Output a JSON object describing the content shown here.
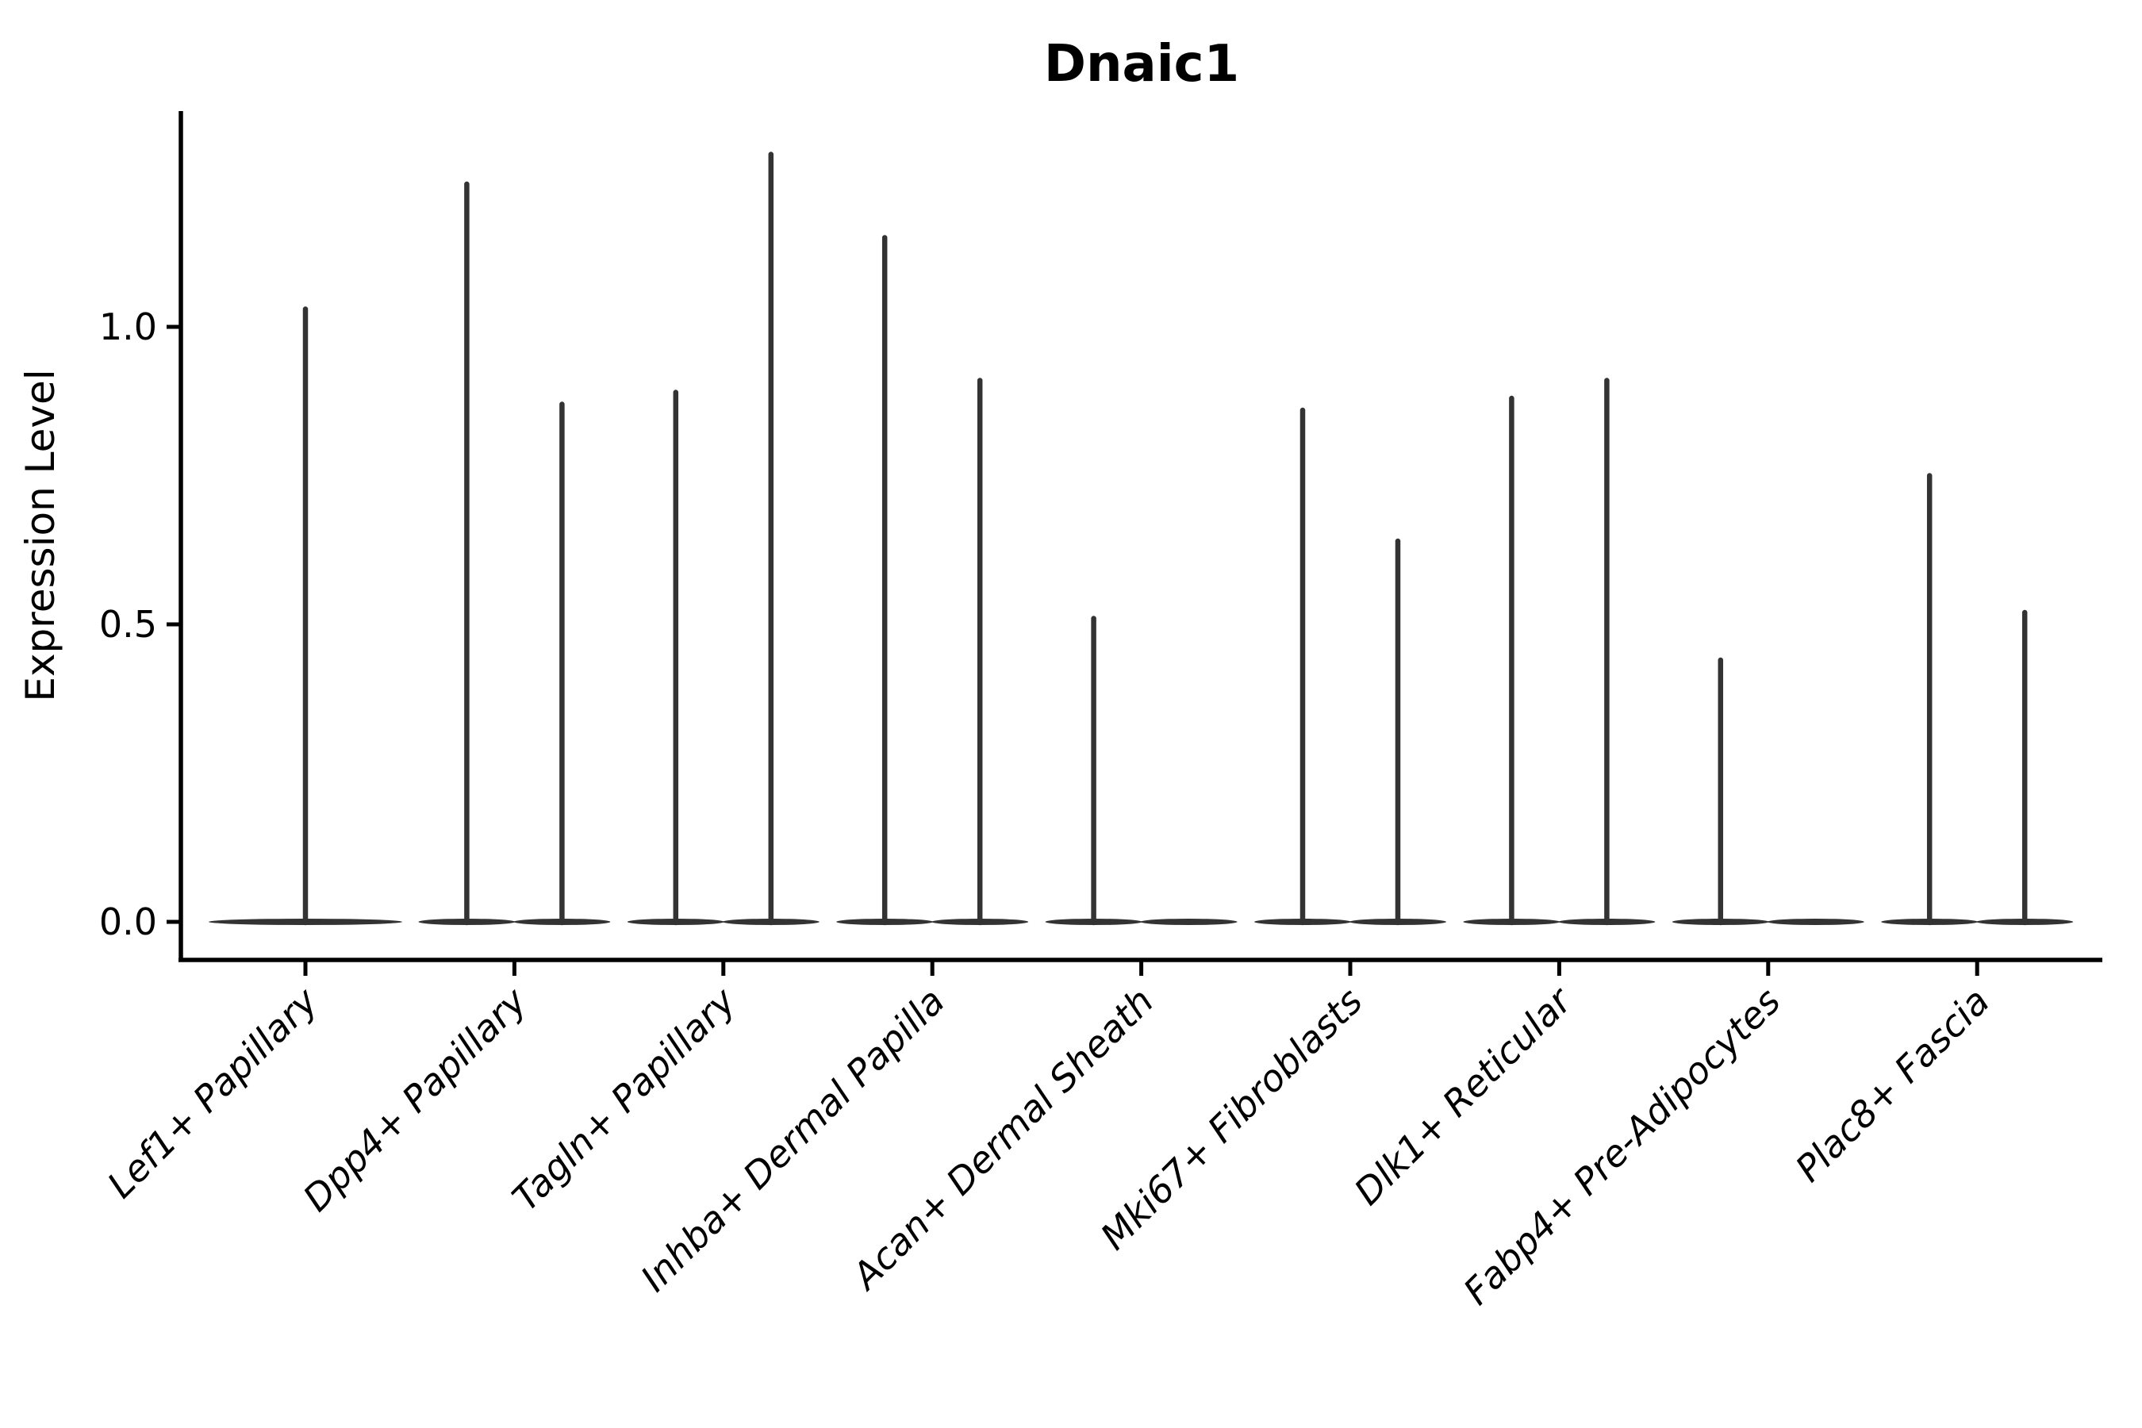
{
  "title": "Dnaic1",
  "axes": {
    "ylabel": "Expression Level",
    "ytick_labels": [
      "0.0",
      "0.5",
      "1.0"
    ]
  },
  "chart_data": {
    "type": "violin",
    "title": "Dnaic1",
    "xlabel": "",
    "ylabel": "Expression Level",
    "ylim": [
      -0.06,
      1.36
    ],
    "yticks": [
      0.0,
      0.5,
      1.0
    ],
    "grid": false,
    "legend": "none",
    "categories": [
      "Lef1+ Papillary",
      "Dpp4+ Papillary",
      "Tagln+ Papillary",
      "Inhba+ Dermal Papilla",
      "Acan+ Dermal Sheath",
      "Mki67+ Fibroblasts",
      "Dlk1+ Reticular",
      "Fabp4+ Pre-Adipocytes",
      "Plac8+ Fascia"
    ],
    "violins": [
      {
        "category": "Lef1+ Papillary",
        "components": [
          {
            "position": "center",
            "width": "full",
            "max": 1.03
          }
        ]
      },
      {
        "category": "Dpp4+ Papillary",
        "components": [
          {
            "position": "left",
            "width": "half",
            "max": 1.24
          },
          {
            "position": "right",
            "width": "half",
            "max": 0.87
          }
        ]
      },
      {
        "category": "Tagln+ Papillary",
        "components": [
          {
            "position": "left",
            "width": "half",
            "max": 0.89
          },
          {
            "position": "right",
            "width": "half",
            "max": 1.29
          }
        ]
      },
      {
        "category": "Inhba+ Dermal Papilla",
        "components": [
          {
            "position": "left",
            "width": "half",
            "max": 1.15
          },
          {
            "position": "right",
            "width": "half",
            "max": 0.91
          }
        ]
      },
      {
        "category": "Acan+ Dermal Sheath",
        "components": [
          {
            "position": "left",
            "width": "half",
            "max": 0.51
          },
          {
            "position": "right",
            "width": "half",
            "max": 0.0
          }
        ]
      },
      {
        "category": "Mki67+ Fibroblasts",
        "components": [
          {
            "position": "left",
            "width": "half",
            "max": 0.86
          },
          {
            "position": "right",
            "width": "half",
            "max": 0.64
          }
        ]
      },
      {
        "category": "Dlk1+ Reticular",
        "components": [
          {
            "position": "left",
            "width": "half",
            "max": 0.88
          },
          {
            "position": "right",
            "width": "half",
            "max": 0.91
          }
        ]
      },
      {
        "category": "Fabp4+ Pre-Adipocytes",
        "components": [
          {
            "position": "left",
            "width": "half",
            "max": 0.44
          },
          {
            "position": "right",
            "width": "half",
            "max": 0.0
          }
        ]
      },
      {
        "category": "Plac8+ Fascia",
        "components": [
          {
            "position": "left",
            "width": "half",
            "max": 0.75
          },
          {
            "position": "right",
            "width": "half",
            "max": 0.52
          }
        ]
      }
    ],
    "colors": {
      "violin": "#333333",
      "axis": "#000000",
      "background": "#ffffff"
    }
  }
}
